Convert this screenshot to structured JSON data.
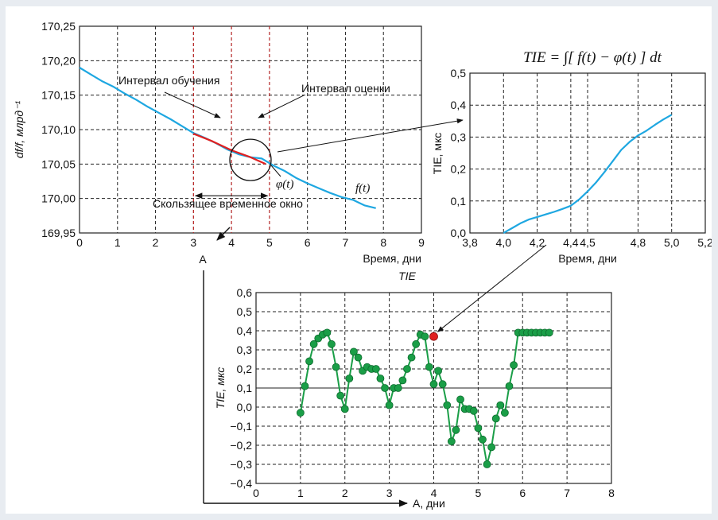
{
  "chart_data": [
    {
      "type": "line",
      "ylabel": "df/f, млрд⁻¹",
      "xlabel": "Время, дни",
      "xlim": [
        0,
        9
      ],
      "ylim": [
        169.95,
        170.25
      ],
      "x_ticks": [
        0,
        1,
        2,
        3,
        4,
        5,
        6,
        7,
        8,
        9
      ],
      "y_ticks": [
        169.95,
        170.0,
        170.05,
        170.1,
        170.15,
        170.2,
        170.25
      ],
      "x_tick_labels": [
        "0",
        "1",
        "2",
        "3",
        "4",
        "5",
        "6",
        "7",
        "8",
        "9"
      ],
      "y_tick_labels": [
        "169,95",
        "170,00",
        "170,05",
        "170,10",
        "170,15",
        "170,20",
        "170,25"
      ],
      "grid": "dashed",
      "series": [
        {
          "name": "f(t)",
          "color": "#1ea7e1",
          "x": [
            0,
            0.3,
            0.6,
            0.9,
            1.2,
            1.5,
            1.8,
            2.1,
            2.4,
            2.7,
            3.0,
            3.3,
            3.6,
            3.9,
            4.2,
            4.5,
            4.8,
            5.1,
            5.4,
            5.7,
            6.0,
            6.3,
            6.6,
            6.9,
            7.2,
            7.5,
            7.8
          ],
          "y": [
            170.19,
            170.18,
            170.17,
            170.162,
            170.152,
            170.143,
            170.133,
            170.124,
            170.115,
            170.105,
            170.095,
            170.088,
            170.08,
            170.071,
            170.064,
            170.06,
            170.058,
            170.048,
            170.04,
            170.03,
            170.022,
            170.015,
            170.008,
            170.002,
            169.998,
            169.99,
            169.986
          ]
        },
        {
          "name": "φ(t)",
          "color": "#e02020",
          "x": [
            3.0,
            3.5,
            4.0,
            4.5,
            4.9
          ],
          "y": [
            170.094,
            170.083,
            170.07,
            170.06,
            170.05
          ]
        }
      ],
      "vlines": [
        {
          "x": 3,
          "color": "#cc2222"
        },
        {
          "x": 4,
          "color": "#cc2222"
        },
        {
          "x": 5,
          "color": "#cc2222"
        }
      ],
      "annotations": {
        "training": "Интервал обучения",
        "estimate": "Интервал оценки",
        "window": "Скользящее временное окно",
        "phi": "φ(t)",
        "f": "f(t)",
        "A": "A"
      }
    },
    {
      "type": "line",
      "ylabel": "TIE, мкс",
      "xlabel": "Время, дни",
      "xlim": [
        3.8,
        5.2
      ],
      "ylim": [
        0,
        0.5
      ],
      "x_ticks": [
        3.8,
        4.0,
        4.2,
        4.4,
        4.5,
        4.8,
        5.0,
        5.2
      ],
      "x_tick_labels": [
        "3,8",
        "4,0",
        "4,2",
        "4,4",
        "4,5",
        "4,8",
        "5,0",
        "5,2"
      ],
      "y_ticks": [
        0,
        0.1,
        0.2,
        0.3,
        0.4,
        0.5
      ],
      "y_tick_labels": [
        "0,0",
        "0,1",
        "0,2",
        "0,3",
        "0,4",
        "0,5"
      ],
      "grid": "dashed",
      "series": [
        {
          "color": "#1ea7e1",
          "x": [
            4.0,
            4.05,
            4.1,
            4.15,
            4.2,
            4.25,
            4.3,
            4.35,
            4.4,
            4.45,
            4.5,
            4.55,
            4.6,
            4.65,
            4.7,
            4.75,
            4.8,
            4.85,
            4.9,
            4.95,
            5.0
          ],
          "y": [
            0,
            0.015,
            0.03,
            0.042,
            0.05,
            0.058,
            0.066,
            0.075,
            0.085,
            0.105,
            0.13,
            0.158,
            0.19,
            0.225,
            0.26,
            0.285,
            0.305,
            0.32,
            0.338,
            0.355,
            0.37
          ]
        }
      ]
    },
    {
      "type": "line",
      "title": "TIE",
      "ylabel": "TIE, мкс",
      "xlabel": "A, дни",
      "xlim": [
        0,
        8
      ],
      "ylim": [
        -0.4,
        0.6
      ],
      "x_ticks": [
        0,
        1,
        2,
        3,
        4,
        5,
        6,
        7,
        8
      ],
      "x_tick_labels": [
        "0",
        "1",
        "2",
        "3",
        "4",
        "5",
        "6",
        "7",
        "8"
      ],
      "y_ticks": [
        -0.4,
        -0.3,
        -0.2,
        -0.1,
        0,
        0.1,
        0.2,
        0.3,
        0.4,
        0.5,
        0.6
      ],
      "y_tick_labels": [
        "−0,4",
        "−0,3",
        "−0,2",
        "−0,1",
        "0,0",
        "0,1",
        "0,2",
        "0,3",
        "0,4",
        "0,5",
        "0,6"
      ],
      "grid": "dashed",
      "hline": 0.1,
      "series": [
        {
          "color": "#1a9e47",
          "x": [
            1.0,
            1.1,
            1.2,
            1.3,
            1.4,
            1.5,
            1.6,
            1.7,
            1.8,
            1.9,
            2.0,
            2.1,
            2.2,
            2.3,
            2.4,
            2.5,
            2.6,
            2.7,
            2.8,
            2.9,
            3.0,
            3.1,
            3.2,
            3.3,
            3.4,
            3.5,
            3.6,
            3.7,
            3.8,
            3.9,
            4.0,
            4.1,
            4.2,
            4.3,
            4.4,
            4.5,
            4.6,
            4.7,
            4.8,
            4.9,
            5.0,
            5.1,
            5.2,
            5.3,
            5.4,
            5.5,
            5.6,
            5.7,
            5.8,
            5.9,
            6.0,
            6.1,
            6.2,
            6.3,
            6.4,
            6.5,
            6.6
          ],
          "y": [
            -0.03,
            0.11,
            0.24,
            0.33,
            0.36,
            0.38,
            0.39,
            0.33,
            0.21,
            0.06,
            -0.01,
            0.15,
            0.29,
            0.26,
            0.19,
            0.21,
            0.2,
            0.2,
            0.15,
            0.1,
            0.01,
            0.1,
            0.1,
            0.14,
            0.2,
            0.26,
            0.33,
            0.38,
            0.37,
            0.21,
            0.12,
            0.19,
            0.12,
            0.01,
            -0.18,
            -0.12,
            0.04,
            -0.01,
            -0.01,
            -0.02,
            -0.11,
            -0.17,
            -0.3,
            -0.21,
            -0.06,
            0.01,
            -0.03,
            0.11,
            0.22,
            0.39,
            0.39,
            0.39,
            0.39,
            0.39,
            0.39,
            0.39,
            0.39
          ]
        }
      ],
      "highlight": {
        "x": 4.0,
        "y": 0.37,
        "color": "#e02020"
      }
    }
  ],
  "formula": "TIE = ∫[ f(t) − φ(t) ] dt"
}
